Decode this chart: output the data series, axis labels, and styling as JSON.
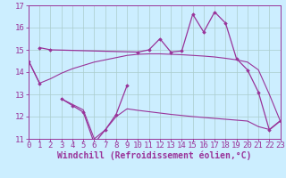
{
  "xlabel": "Windchill (Refroidissement éolien,°C)",
  "bg_color": "#cceeff",
  "line_color": "#993399",
  "grid_color": "#aacccc",
  "x_values": [
    0,
    1,
    2,
    3,
    4,
    5,
    6,
    7,
    8,
    9,
    10,
    11,
    12,
    13,
    14,
    15,
    16,
    17,
    18,
    19,
    20,
    21,
    22,
    23
  ],
  "series_jagged1": [
    14.5,
    13.5,
    null,
    null,
    null,
    null,
    null,
    null,
    null,
    null,
    null,
    null,
    null,
    null,
    null,
    null,
    null,
    null,
    null,
    null,
    null,
    null,
    null,
    null
  ],
  "series_jagged2": [
    null,
    null,
    null,
    12.8,
    12.5,
    12.2,
    10.8,
    11.4,
    12.1,
    13.4,
    null,
    null,
    null,
    null,
    null,
    null,
    null,
    null,
    null,
    null,
    null,
    null,
    null,
    null
  ],
  "series_jagged3": [
    null,
    15.1,
    15.0,
    null,
    null,
    null,
    null,
    null,
    null,
    null,
    14.9,
    15.0,
    15.5,
    14.9,
    14.95,
    16.6,
    15.8,
    16.7,
    16.2,
    14.6,
    14.1,
    13.1,
    11.4,
    11.8
  ],
  "series_smooth1": [
    14.5,
    13.5,
    13.7,
    13.95,
    14.15,
    14.3,
    14.45,
    14.55,
    14.65,
    14.75,
    14.8,
    14.82,
    14.82,
    14.8,
    14.78,
    14.75,
    14.72,
    14.68,
    14.62,
    14.55,
    14.45,
    14.1,
    13.0,
    11.8
  ],
  "series_smooth2": [
    null,
    null,
    null,
    12.8,
    12.55,
    12.3,
    11.0,
    11.4,
    12.0,
    12.35,
    12.28,
    12.22,
    12.16,
    12.1,
    12.05,
    12.0,
    11.96,
    11.92,
    11.88,
    11.84,
    11.8,
    11.55,
    11.42,
    11.82
  ],
  "ylim": [
    11,
    17
  ],
  "xlim": [
    0,
    23
  ],
  "yticks": [
    11,
    12,
    13,
    14,
    15,
    16,
    17
  ],
  "xticks": [
    0,
    1,
    2,
    3,
    4,
    5,
    6,
    7,
    8,
    9,
    10,
    11,
    12,
    13,
    14,
    15,
    16,
    17,
    18,
    19,
    20,
    21,
    22,
    23
  ],
  "tick_fontsize": 6.5,
  "xlabel_fontsize": 7
}
